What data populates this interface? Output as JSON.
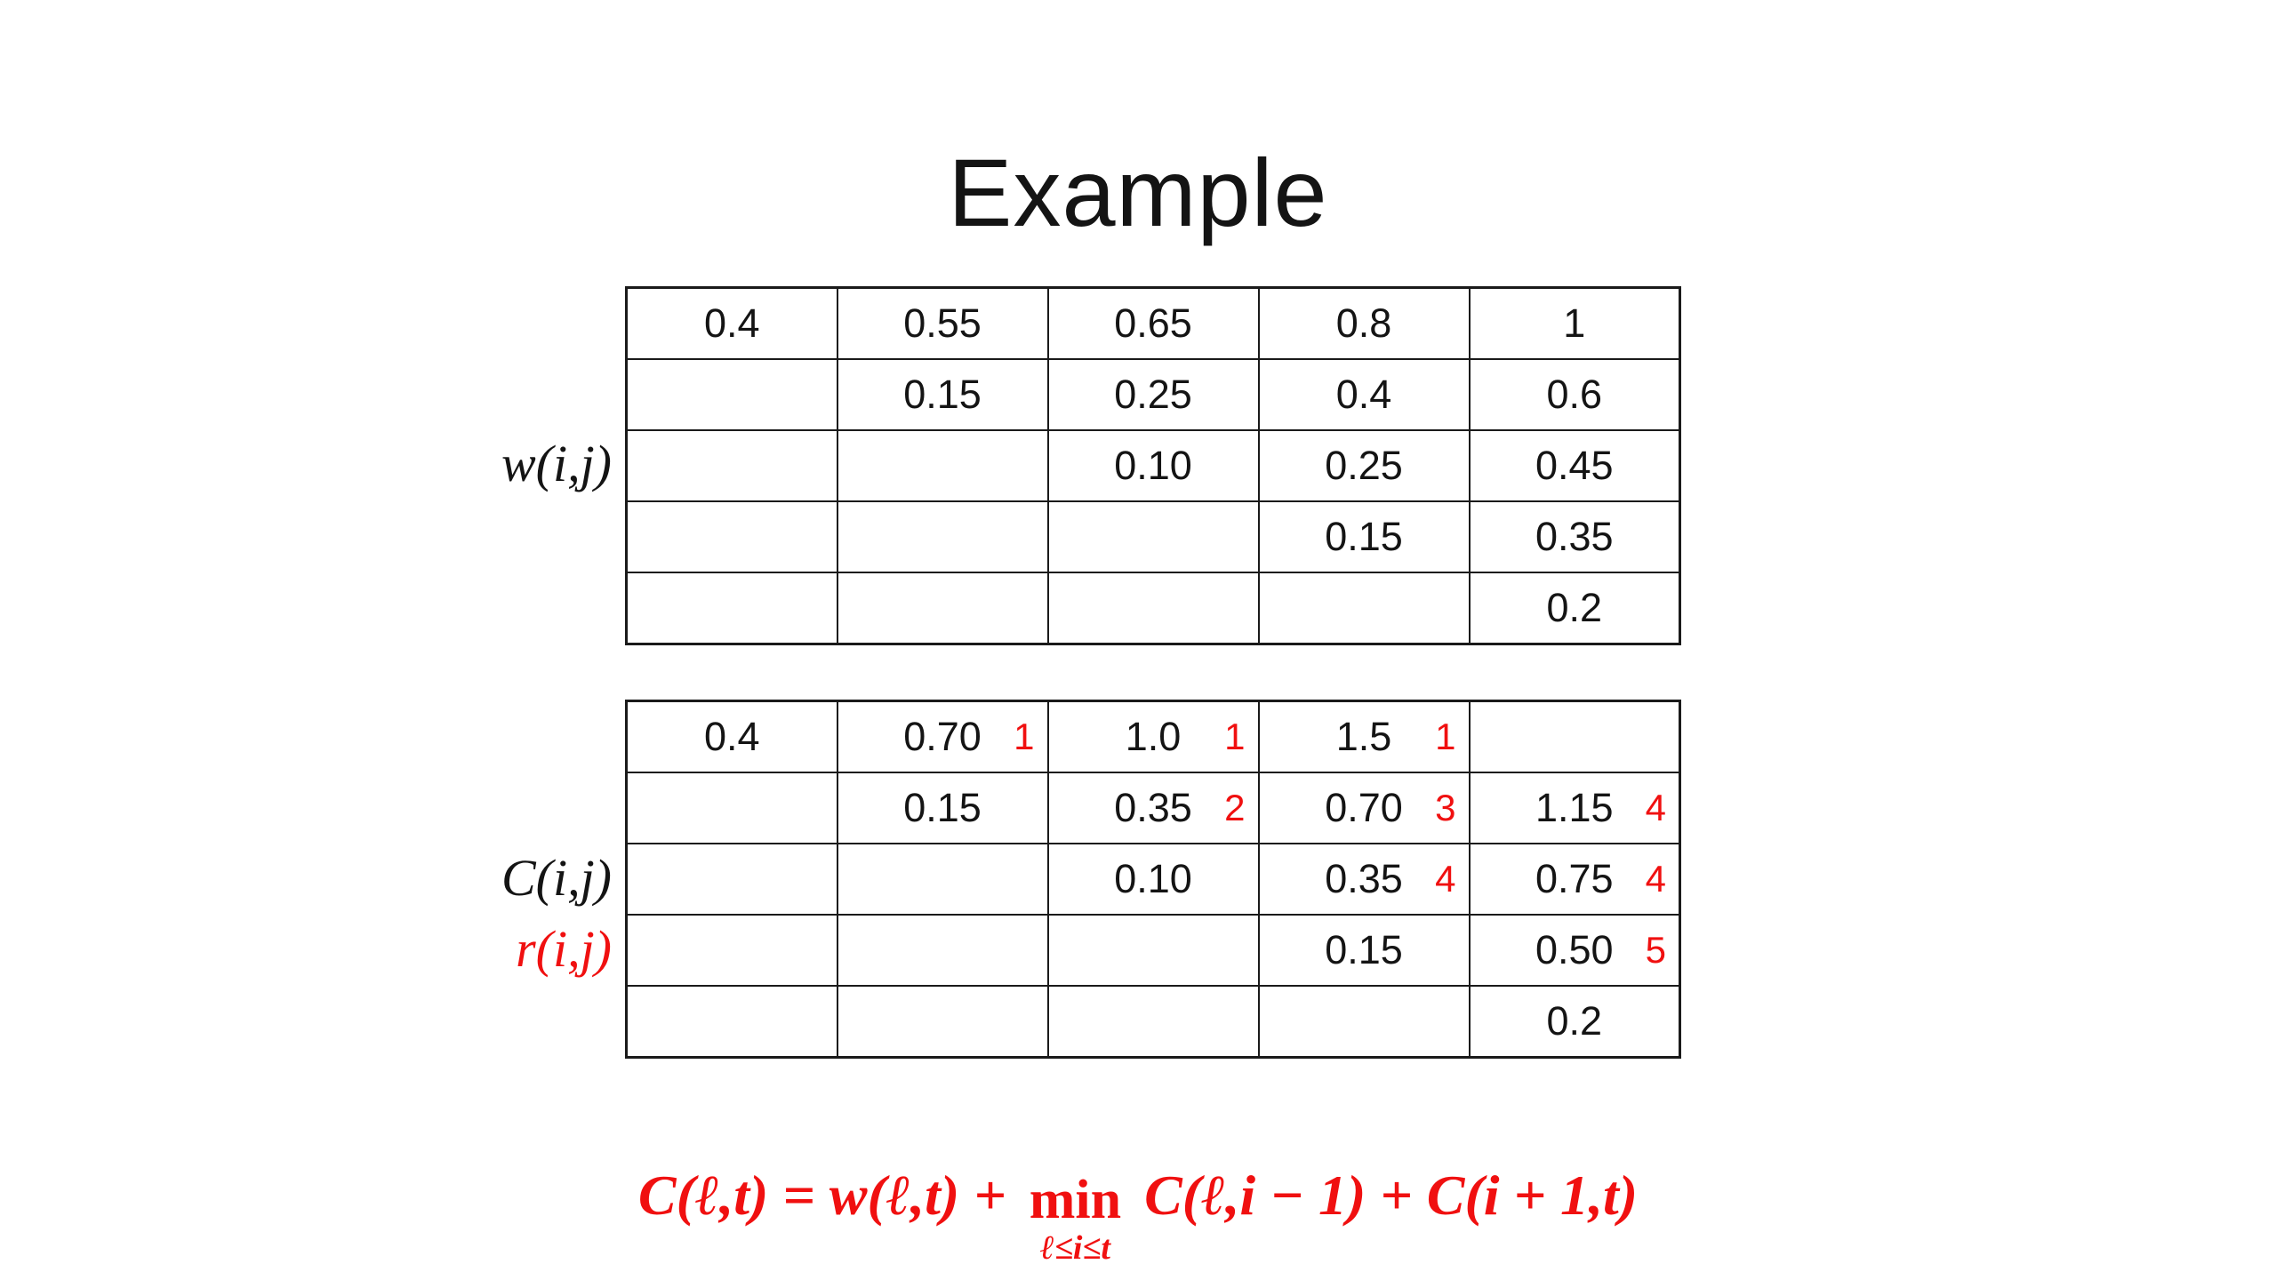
{
  "slide": {
    "title": "Example",
    "background": "#ffffff"
  },
  "colors": {
    "text_black": "#141414",
    "accent_red": "#f01010"
  },
  "w_table": {
    "label": "w(i,j)",
    "rows": [
      [
        "0.4",
        "0.55",
        "0.65",
        "0.8",
        "1"
      ],
      [
        "",
        "0.15",
        "0.25",
        "0.4",
        "0.6"
      ],
      [
        "",
        "",
        "0.10",
        "0.25",
        "0.45"
      ],
      [
        "",
        "",
        "",
        "0.15",
        "0.35"
      ],
      [
        "",
        "",
        "",
        "",
        "0.2"
      ]
    ]
  },
  "c_table": {
    "label_c": "C(i,j)",
    "label_r": "r(i,j)",
    "rows": [
      [
        {
          "c": "0.4",
          "r": ""
        },
        {
          "c": "0.70",
          "r": "1"
        },
        {
          "c": "1.0",
          "r": "1"
        },
        {
          "c": "1.5",
          "r": "1"
        },
        {
          "c": "",
          "r": ""
        }
      ],
      [
        {
          "c": "",
          "r": ""
        },
        {
          "c": "0.15",
          "r": ""
        },
        {
          "c": "0.35",
          "r": "2"
        },
        {
          "c": "0.70",
          "r": "3"
        },
        {
          "c": "1.15",
          "r": "4"
        }
      ],
      [
        {
          "c": "",
          "r": ""
        },
        {
          "c": "",
          "r": ""
        },
        {
          "c": "0.10",
          "r": ""
        },
        {
          "c": "0.35",
          "r": "4"
        },
        {
          "c": "0.75",
          "r": "4"
        }
      ],
      [
        {
          "c": "",
          "r": ""
        },
        {
          "c": "",
          "r": ""
        },
        {
          "c": "",
          "r": ""
        },
        {
          "c": "0.15",
          "r": ""
        },
        {
          "c": "0.50",
          "r": "5"
        }
      ],
      [
        {
          "c": "",
          "r": ""
        },
        {
          "c": "",
          "r": ""
        },
        {
          "c": "",
          "r": ""
        },
        {
          "c": "",
          "r": ""
        },
        {
          "c": "0.2",
          "r": ""
        }
      ]
    ]
  },
  "formula": {
    "lhs": "C(ℓ,t) = w(ℓ,t) +",
    "min_word": "min",
    "min_sub": "ℓ≤i≤t",
    "rhs": "C(ℓ,i − 1) + C(i + 1,t)"
  }
}
